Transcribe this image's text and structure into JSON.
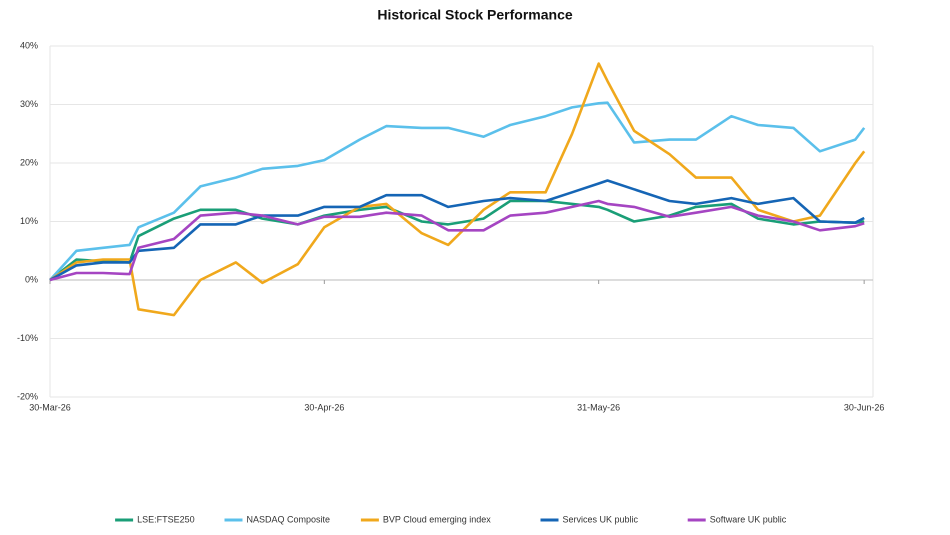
{
  "chart_data": {
    "type": "line",
    "title": "Historical Stock Performance",
    "x": [
      "2026-03-30",
      "2026-04-02",
      "2026-04-05",
      "2026-04-08",
      "2026-04-09",
      "2026-04-13",
      "2026-04-16",
      "2026-04-20",
      "2026-04-23",
      "2026-04-27",
      "2026-04-30",
      "2026-05-04",
      "2026-05-07",
      "2026-05-11",
      "2026-05-14",
      "2026-05-18",
      "2026-05-21",
      "2026-05-25",
      "2026-05-28",
      "2026-05-31",
      "2026-06-01",
      "2026-06-04",
      "2026-06-08",
      "2026-06-11",
      "2026-06-15",
      "2026-06-18",
      "2026-06-22",
      "2026-06-25",
      "2026-06-29",
      "2026-06-30"
    ],
    "series": [
      {
        "name": "LSE:FTSE250",
        "color": "#1a9e77",
        "values": [
          0,
          3.5,
          3.2,
          3,
          7.5,
          10.5,
          12,
          12,
          10.5,
          9.5,
          11,
          12,
          12.5,
          10,
          9.5,
          10.5,
          13.5,
          13.5,
          13,
          12.5,
          12,
          10,
          11,
          12.5,
          13,
          10.5,
          9.5,
          10,
          9.8,
          10
        ]
      },
      {
        "name": "NASDAQ Composite",
        "color": "#5bc0eb",
        "values": [
          0,
          5,
          5.5,
          6,
          9,
          11.5,
          16,
          17.5,
          19,
          19.5,
          20.5,
          24,
          26.3,
          26,
          26,
          24.5,
          26.5,
          28,
          29.5,
          30.2,
          30.3,
          23.5,
          24,
          24,
          28,
          26.5,
          26,
          22,
          24,
          26
        ]
      },
      {
        "name": "BVP Cloud emerging index",
        "color": "#f0a81c",
        "values": [
          0,
          3,
          3.5,
          3.5,
          -5,
          -6,
          0,
          3,
          -0.5,
          2.7,
          9,
          12.5,
          13,
          8,
          6,
          12,
          15,
          15,
          25,
          37,
          34,
          25.5,
          21.5,
          17.5,
          17.5,
          12,
          10,
          11,
          20,
          22
        ]
      },
      {
        "name": "Services UK public",
        "color": "#1565b5",
        "values": [
          0,
          2.5,
          3,
          3,
          5,
          5.5,
          9.5,
          9.5,
          11,
          11,
          12.5,
          12.5,
          14.5,
          14.5,
          12.5,
          13.5,
          14,
          13.5,
          15,
          16.5,
          17,
          15.5,
          13.5,
          13,
          14,
          13,
          14,
          10,
          9.8,
          10.6
        ]
      },
      {
        "name": "Software UK public",
        "color": "#a545c2",
        "values": [
          0,
          1.2,
          1.2,
          1,
          5.5,
          7,
          11,
          11.5,
          11,
          9.5,
          10.8,
          10.8,
          11.5,
          11,
          8.5,
          8.5,
          11,
          11.5,
          12.5,
          13.5,
          13,
          12.5,
          10.8,
          11.5,
          12.5,
          11,
          10,
          8.5,
          9.2,
          9.7
        ]
      }
    ],
    "xlim": [
      "2026-03-30",
      "2026-07-01"
    ],
    "xticks": [
      {
        "value": "2026-03-30",
        "label": "30-Mar-26"
      },
      {
        "value": "2026-04-30",
        "label": "30-Apr-26"
      },
      {
        "value": "2026-05-31",
        "label": "31-May-26"
      },
      {
        "value": "2026-06-30",
        "label": "30-Jun-26"
      }
    ],
    "ylim": [
      -20,
      40
    ],
    "yticks": [
      {
        "value": -20,
        "label": "-20%"
      },
      {
        "value": -10,
        "label": "-10%"
      },
      {
        "value": 0,
        "label": "0%"
      },
      {
        "value": 10,
        "label": "10%"
      },
      {
        "value": 20,
        "label": "20%"
      },
      {
        "value": 30,
        "label": "30%"
      },
      {
        "value": 40,
        "label": "40%"
      }
    ],
    "grid": true,
    "legend": "bottom"
  }
}
